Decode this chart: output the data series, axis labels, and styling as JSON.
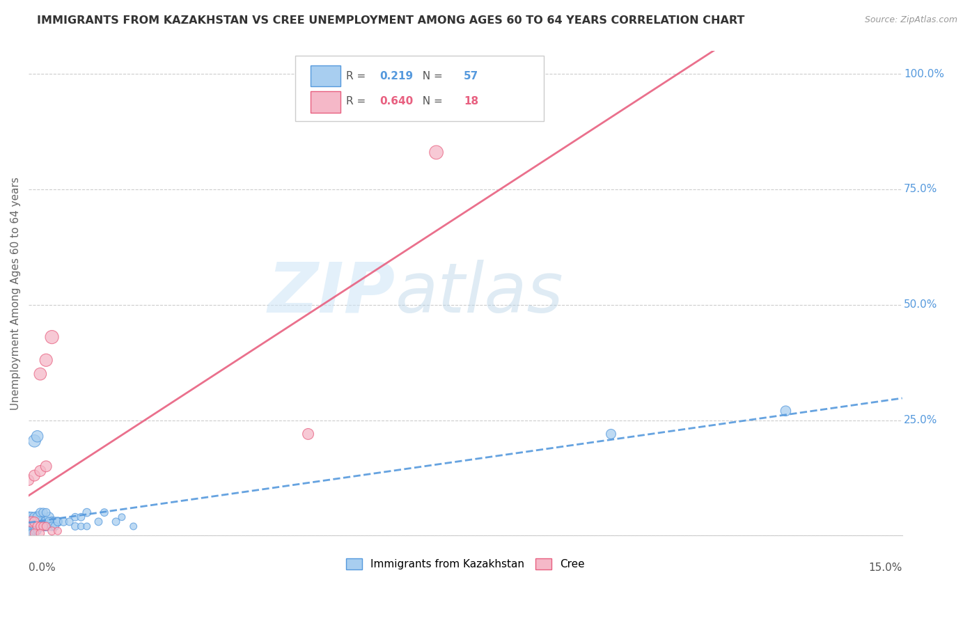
{
  "title": "IMMIGRANTS FROM KAZAKHSTAN VS CREE UNEMPLOYMENT AMONG AGES 60 TO 64 YEARS CORRELATION CHART",
  "source": "Source: ZipAtlas.com",
  "ylabel": "Unemployment Among Ages 60 to 64 years",
  "xmin": 0.0,
  "xmax": 0.15,
  "ymin": 0.0,
  "ymax": 1.05,
  "ylabel_tick_vals": [
    0.25,
    0.5,
    0.75,
    1.0
  ],
  "ylabel_tick_labels": [
    "25.0%",
    "50.0%",
    "75.0%",
    "100.0%"
  ],
  "legend_r_blue": "0.219",
  "legend_n_blue": "57",
  "legend_r_pink": "0.640",
  "legend_n_pink": "18",
  "blue_fill": "#a8cef0",
  "blue_edge": "#5599dd",
  "pink_fill": "#f5b8c8",
  "pink_edge": "#e86080",
  "blue_line_color": "#5599dd",
  "pink_line_color": "#e86080",
  "watermark_zip": "ZIP",
  "watermark_atlas": "atlas",
  "blue_x": [
    0.0005,
    0.001,
    0.0015,
    0.002,
    0.0025,
    0.003,
    0.0035,
    0.004,
    0.0045,
    0.005,
    0.0,
    0.0005,
    0.001,
    0.0015,
    0.002,
    0.0025,
    0.003,
    0.0035,
    0.004,
    0.0045,
    0.0,
    0.0005,
    0.001,
    0.0015,
    0.002,
    0.0025,
    0.003,
    0.0,
    0.0005,
    0.001,
    0.0015,
    0.002,
    0.0025,
    0.0,
    0.0005,
    0.001,
    0.0015,
    0.005,
    0.006,
    0.007,
    0.008,
    0.009,
    0.01,
    0.012,
    0.015,
    0.018,
    0.008,
    0.009,
    0.01,
    0.013,
    0.016,
    0.001,
    0.0015,
    0.1,
    0.13
  ],
  "blue_y": [
    0.03,
    0.03,
    0.04,
    0.04,
    0.03,
    0.03,
    0.04,
    0.03,
    0.03,
    0.03,
    0.02,
    0.02,
    0.02,
    0.03,
    0.02,
    0.02,
    0.02,
    0.03,
    0.02,
    0.02,
    0.04,
    0.04,
    0.04,
    0.04,
    0.05,
    0.05,
    0.05,
    0.01,
    0.01,
    0.02,
    0.02,
    0.02,
    0.02,
    0.005,
    0.005,
    0.01,
    0.01,
    0.03,
    0.03,
    0.03,
    0.02,
    0.02,
    0.02,
    0.03,
    0.03,
    0.02,
    0.04,
    0.04,
    0.05,
    0.05,
    0.04,
    0.205,
    0.215,
    0.22,
    0.27
  ],
  "blue_sizes": [
    180,
    160,
    140,
    130,
    120,
    110,
    100,
    100,
    90,
    90,
    150,
    130,
    120,
    110,
    100,
    90,
    90,
    80,
    80,
    70,
    120,
    110,
    100,
    90,
    80,
    80,
    70,
    100,
    90,
    80,
    70,
    70,
    60,
    80,
    70,
    60,
    60,
    70,
    70,
    60,
    60,
    50,
    50,
    60,
    60,
    50,
    60,
    60,
    70,
    60,
    50,
    160,
    140,
    100,
    110
  ],
  "pink_x": [
    0.0005,
    0.001,
    0.0015,
    0.002,
    0.0025,
    0.003,
    0.004,
    0.005,
    0.0,
    0.001,
    0.002,
    0.003,
    0.002,
    0.003,
    0.004,
    0.001,
    0.002,
    0.048,
    0.07
  ],
  "pink_y": [
    0.03,
    0.03,
    0.02,
    0.02,
    0.02,
    0.02,
    0.01,
    0.01,
    0.12,
    0.13,
    0.14,
    0.15,
    0.35,
    0.38,
    0.43,
    0.005,
    0.005,
    0.22,
    0.83
  ],
  "pink_sizes": [
    120,
    100,
    90,
    80,
    80,
    70,
    70,
    60,
    120,
    130,
    130,
    130,
    160,
    170,
    190,
    80,
    70,
    130,
    200
  ]
}
